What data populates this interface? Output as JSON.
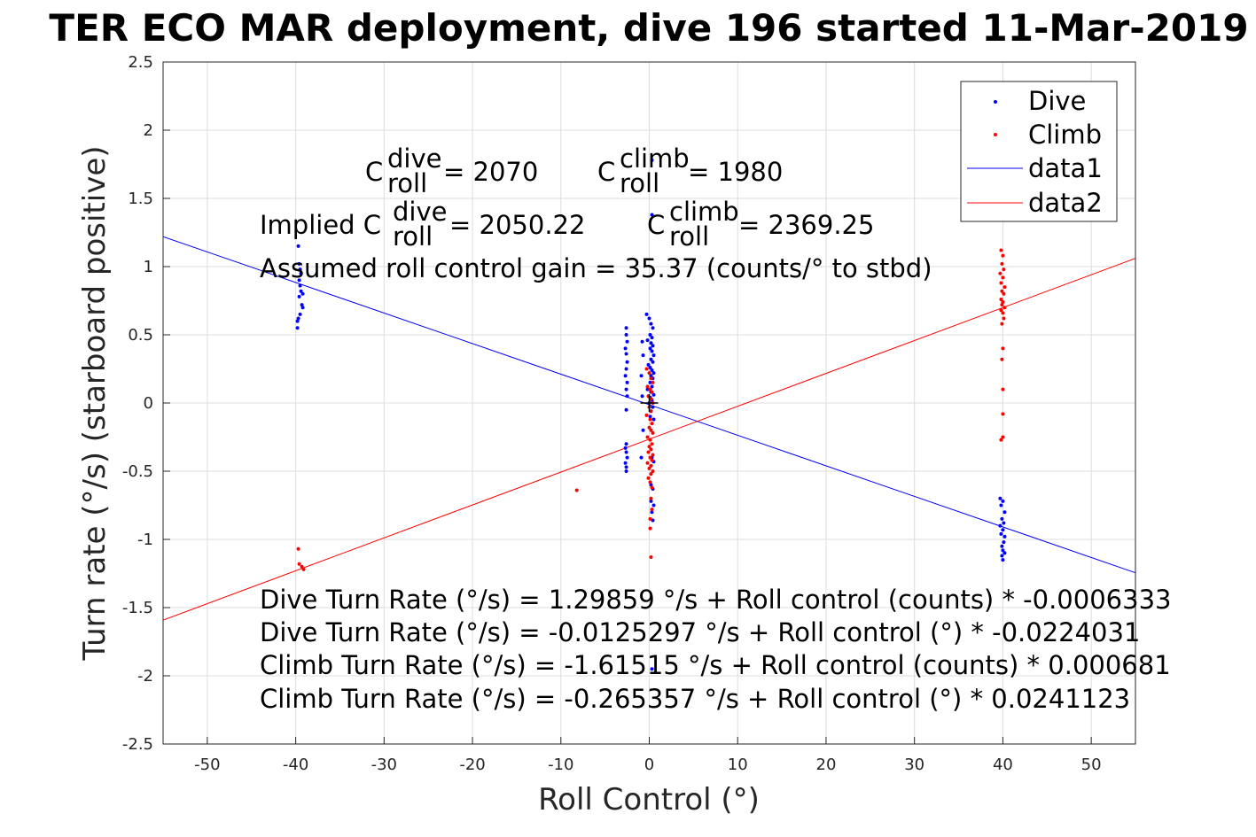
{
  "chart_data": {
    "type": "scatter",
    "title": "TER ECO MAR deployment, dive 196 started 11-Mar-2019",
    "xlabel": "Roll Control (°)",
    "ylabel": "Turn rate (°/s) (starboard positive)",
    "xlim": [
      -55,
      55
    ],
    "ylim": [
      -2.5,
      2.5
    ],
    "xticks": [
      -50,
      -40,
      -30,
      -20,
      -10,
      0,
      10,
      20,
      30,
      40,
      50
    ],
    "yticks": [
      -2.5,
      -2,
      -1.5,
      -1,
      -0.5,
      0,
      0.5,
      1,
      1.5,
      2,
      2.5
    ],
    "grid": true,
    "legend_position": "top-right",
    "legend": [
      "Dive",
      "Climb",
      "data1",
      "data2"
    ],
    "colors": {
      "dive": "#0000ff",
      "climb": "#ff0000",
      "cross": "#000000"
    },
    "center_marker": {
      "x": 0,
      "y": 0
    },
    "series": [
      {
        "name": "Dive",
        "kind": "points",
        "points": [
          [
            -39.7,
            1.15
          ],
          [
            -39.6,
            1.02
          ],
          [
            -39.5,
            0.98
          ],
          [
            -39.4,
            0.95
          ],
          [
            -39.6,
            0.9
          ],
          [
            -39.5,
            0.86
          ],
          [
            -39.4,
            0.82
          ],
          [
            -39.2,
            0.8
          ],
          [
            -39.6,
            0.78
          ],
          [
            -39.3,
            0.72
          ],
          [
            -39.2,
            0.7
          ],
          [
            -39.5,
            0.65
          ],
          [
            -39.7,
            0.62
          ],
          [
            -39.8,
            0.6
          ],
          [
            -39.8,
            0.55
          ],
          [
            -2.6,
            0.55
          ],
          [
            -2.6,
            0.5
          ],
          [
            -2.5,
            0.45
          ],
          [
            -2.7,
            0.4
          ],
          [
            -2.6,
            0.36
          ],
          [
            -2.5,
            0.3
          ],
          [
            -2.6,
            0.25
          ],
          [
            -2.7,
            0.2
          ],
          [
            -2.5,
            0.15
          ],
          [
            -2.6,
            0.1
          ],
          [
            -2.5,
            0.05
          ],
          [
            -2.6,
            -0.05
          ],
          [
            -2.6,
            -0.3
          ],
          [
            -2.7,
            -0.33
          ],
          [
            -2.6,
            -0.36
          ],
          [
            -2.5,
            -0.4
          ],
          [
            -2.7,
            -0.44
          ],
          [
            -2.6,
            -0.47
          ],
          [
            -2.6,
            -0.5
          ],
          [
            -0.8,
            0.45
          ],
          [
            -0.7,
            0.35
          ],
          [
            -0.9,
            0.2
          ],
          [
            -0.8,
            0.05
          ],
          [
            -0.7,
            -0.2
          ],
          [
            -0.9,
            -0.4
          ],
          [
            -0.3,
            0.65
          ],
          [
            0.0,
            0.62
          ],
          [
            0.2,
            0.58
          ],
          [
            0.4,
            0.55
          ],
          [
            0.1,
            0.5
          ],
          [
            0.3,
            0.48
          ],
          [
            -0.2,
            0.46
          ],
          [
            0.2,
            0.44
          ],
          [
            0.4,
            0.42
          ],
          [
            0.1,
            0.4
          ],
          [
            0.3,
            0.38
          ],
          [
            0.5,
            0.35
          ],
          [
            0.2,
            0.32
          ],
          [
            0.4,
            0.3
          ],
          [
            -0.1,
            0.28
          ],
          [
            0.1,
            0.26
          ],
          [
            0.3,
            0.24
          ],
          [
            0.5,
            0.22
          ],
          [
            0.2,
            0.2
          ],
          [
            0.4,
            0.18
          ],
          [
            0.1,
            0.15
          ],
          [
            0.3,
            0.12
          ],
          [
            -0.2,
            0.1
          ],
          [
            0.2,
            0.08
          ],
          [
            0.5,
            0.06
          ],
          [
            0.1,
            0.04
          ],
          [
            0.3,
            0.02
          ],
          [
            0.0,
            0.0
          ],
          [
            0.4,
            -0.03
          ],
          [
            0.2,
            -0.06
          ],
          [
            0.1,
            -0.1
          ],
          [
            0.5,
            -0.12
          ],
          [
            0.3,
            -0.4
          ],
          [
            0.5,
            -0.43
          ],
          [
            0.2,
            -0.6
          ],
          [
            0.4,
            -0.63
          ],
          [
            0.2,
            -0.72
          ],
          [
            0.5,
            -0.75
          ],
          [
            0.3,
            -0.8
          ],
          [
            0.4,
            -0.86
          ],
          [
            0.3,
            1.78
          ],
          [
            0.3,
            1.38
          ],
          [
            0.3,
            -1.95
          ],
          [
            39.7,
            -0.7
          ],
          [
            40.0,
            -0.72
          ],
          [
            39.8,
            -0.75
          ],
          [
            40.2,
            -0.8
          ],
          [
            39.9,
            -0.85
          ],
          [
            40.1,
            -0.88
          ],
          [
            39.7,
            -0.9
          ],
          [
            40.0,
            -0.93
          ],
          [
            39.8,
            -0.96
          ],
          [
            40.2,
            -0.98
          ],
          [
            40.1,
            -1.02
          ],
          [
            39.9,
            -1.05
          ],
          [
            40.0,
            -1.08
          ],
          [
            40.2,
            -1.1
          ],
          [
            39.9,
            -1.12
          ],
          [
            40.0,
            -1.15
          ]
        ]
      },
      {
        "name": "Climb",
        "kind": "points",
        "points": [
          [
            -39.7,
            -1.07
          ],
          [
            -39.6,
            -1.18
          ],
          [
            -39.3,
            -1.2
          ],
          [
            -39.1,
            -1.22
          ],
          [
            -8.2,
            -0.64
          ],
          [
            -0.3,
            0.25
          ],
          [
            0.0,
            0.22
          ],
          [
            0.2,
            0.18
          ],
          [
            0.4,
            0.15
          ],
          [
            -0.2,
            0.12
          ],
          [
            0.1,
            0.1
          ],
          [
            0.3,
            0.08
          ],
          [
            -0.1,
            0.05
          ],
          [
            0.2,
            0.03
          ],
          [
            0.4,
            0.0
          ],
          [
            0.0,
            -0.03
          ],
          [
            0.2,
            -0.06
          ],
          [
            -0.3,
            -0.09
          ],
          [
            0.1,
            -0.12
          ],
          [
            0.3,
            -0.15
          ],
          [
            0.0,
            -0.18
          ],
          [
            0.2,
            -0.2
          ],
          [
            0.4,
            -0.22
          ],
          [
            -0.2,
            -0.25
          ],
          [
            0.1,
            -0.27
          ],
          [
            0.3,
            -0.3
          ],
          [
            0.0,
            -0.32
          ],
          [
            0.2,
            -0.34
          ],
          [
            -0.1,
            -0.36
          ],
          [
            0.4,
            -0.38
          ],
          [
            0.1,
            -0.4
          ],
          [
            0.3,
            -0.42
          ],
          [
            -0.2,
            -0.44
          ],
          [
            0.2,
            -0.46
          ],
          [
            0.0,
            -0.48
          ],
          [
            0.4,
            -0.5
          ],
          [
            0.2,
            -0.52
          ],
          [
            -0.1,
            -0.55
          ],
          [
            0.1,
            -0.58
          ],
          [
            0.3,
            -0.62
          ],
          [
            0.2,
            -0.7
          ],
          [
            0.3,
            -0.78
          ],
          [
            0.1,
            -0.85
          ],
          [
            0.1,
            -0.92
          ],
          [
            0.2,
            -1.13
          ],
          [
            39.8,
            1.12
          ],
          [
            40.0,
            1.08
          ],
          [
            39.9,
            1.02
          ],
          [
            40.1,
            0.98
          ],
          [
            39.7,
            0.95
          ],
          [
            40.0,
            0.92
          ],
          [
            39.8,
            0.88
          ],
          [
            40.2,
            0.85
          ],
          [
            39.9,
            0.82
          ],
          [
            40.1,
            0.8
          ],
          [
            39.8,
            0.76
          ],
          [
            40.0,
            0.74
          ],
          [
            39.9,
            0.72
          ],
          [
            40.2,
            0.7
          ],
          [
            39.8,
            0.68
          ],
          [
            40.0,
            0.66
          ],
          [
            40.1,
            0.62
          ],
          [
            39.9,
            0.58
          ],
          [
            40.0,
            0.4
          ],
          [
            39.9,
            0.32
          ],
          [
            40.0,
            0.1
          ],
          [
            40.0,
            -0.08
          ],
          [
            40.0,
            -0.25
          ],
          [
            39.8,
            -0.27
          ]
        ]
      },
      {
        "name": "data1",
        "kind": "line",
        "intercept": -0.0125297,
        "slope": -0.0224031
      },
      {
        "name": "data2",
        "kind": "line",
        "intercept": -0.265357,
        "slope": 0.0241123
      }
    ],
    "annotations": {
      "c_roll_dive": "= 2070",
      "c_roll_climb": "= 1980",
      "implied_dive": "= 2050.22",
      "implied_climb": "= 2369.25",
      "implied_prefix": "Implied C",
      "gain": "Assumed roll control gain = 35.37 (counts/° to stbd)",
      "c_letter": "C",
      "sup_dive": "dive",
      "sup_climb": "climb",
      "sub_roll": "roll",
      "equations": [
        "Dive Turn Rate (°/s) = 1.29859 °/s + Roll control (counts) * -0.0006333",
        "Dive Turn Rate (°/s) = -0.0125297 °/s + Roll control (°) * -0.0224031",
        "Climb Turn Rate (°/s) = -1.61515 °/s + Roll control (counts) * 0.000681",
        "Climb Turn Rate (°/s) = -0.265357 °/s + Roll control (°) * 0.0241123"
      ]
    }
  }
}
